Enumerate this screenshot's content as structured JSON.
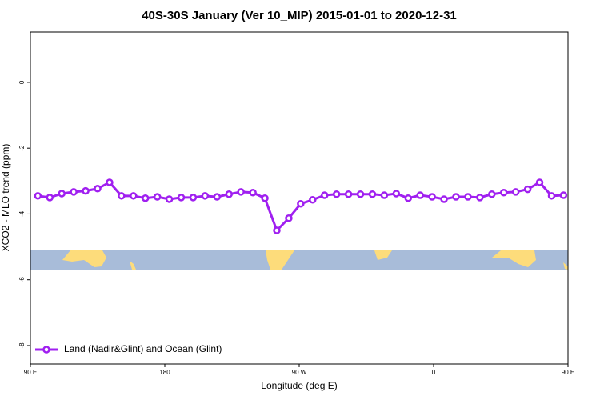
{
  "chart_data": {
    "type": "line",
    "title": "40S-30S January (Ver 10_MIP)   2015-01-01 to 2020-12-31",
    "x_label": "Longitude (deg E)",
    "y_label": "XCO2 - MLO trend (ppm)",
    "x": [
      95,
      103,
      111,
      119,
      127,
      135,
      143,
      151,
      159,
      167,
      175,
      183,
      191,
      199,
      207,
      215,
      223,
      231,
      239,
      247,
      255,
      263,
      271,
      279,
      287,
      295,
      303,
      311,
      319,
      327,
      335,
      343,
      351,
      359,
      367,
      375,
      383,
      391,
      399,
      407,
      415,
      423,
      431,
      439,
      447
    ],
    "series": [
      {
        "name": "Land (Nadir&Glint) and Ocean (Glint)",
        "color": "#a020f0",
        "values": [
          -3.45,
          -3.5,
          -3.38,
          -3.33,
          -3.3,
          -3.23,
          -3.04,
          -3.45,
          -3.45,
          -3.52,
          -3.48,
          -3.55,
          -3.5,
          -3.5,
          -3.45,
          -3.48,
          -3.4,
          -3.33,
          -3.35,
          -3.52,
          -4.5,
          -4.13,
          -3.69,
          -3.57,
          -3.43,
          -3.4,
          -3.4,
          -3.4,
          -3.4,
          -3.43,
          -3.38,
          -3.52,
          -3.43,
          -3.48,
          -3.55,
          -3.48,
          -3.48,
          -3.5,
          -3.4,
          -3.35,
          -3.33,
          -3.25,
          -3.04,
          -3.45,
          -3.43
        ]
      }
    ],
    "xlim": [
      90,
      450
    ],
    "xticks": [
      {
        "value": 90,
        "label": "90 E"
      },
      180,
      {
        "value": 270,
        "label": "90 W"
      },
      {
        "value": 360,
        "label": "0"
      },
      {
        "value": 450,
        "label": "90 E"
      }
    ],
    "ylim": [
      -8.56,
      1.53
    ],
    "yticks": [
      0,
      -2,
      -4,
      -6,
      -8
    ],
    "legend": "bottom-left"
  }
}
